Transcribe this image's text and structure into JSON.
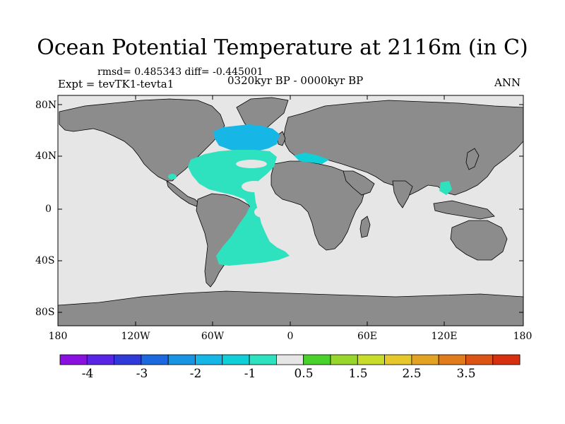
{
  "title": "Ocean Potential Temperature at 2116m (in C)",
  "stats": "rmsd= 0.485343 diff= -0.445001",
  "experiment": "Expt = tevTK1-tevta1",
  "period": "0320kyr BP - 0000kyr BP",
  "season": "ANN",
  "lat_labels": [
    "80N",
    "40N",
    "0",
    "40S",
    "80S"
  ],
  "lon_labels": [
    "180",
    "120W",
    "60W",
    "0",
    "60E",
    "120E",
    "180"
  ],
  "colorbar": {
    "colors": [
      "#8a10e0",
      "#5a24e6",
      "#2f3ad8",
      "#1c68df",
      "#1794e4",
      "#16b6e6",
      "#10cfd6",
      "#2ee2c0",
      "#e6e6e6",
      "#4ad22a",
      "#98d62c",
      "#c8dc2c",
      "#e6c82c",
      "#e4a224",
      "#e07c1c",
      "#dc5414",
      "#d6300e"
    ],
    "labels": [
      "-4",
      "-3",
      "-2",
      "-1",
      "0.5",
      "1.5",
      "2.5",
      "3.5"
    ]
  },
  "colors": {
    "land": "#8c8c8c",
    "ocean_zero": "#e6e6e6",
    "cold_1": "#2ee2c0",
    "cold_2": "#10cfd6",
    "cold_3": "#16b6e6"
  }
}
